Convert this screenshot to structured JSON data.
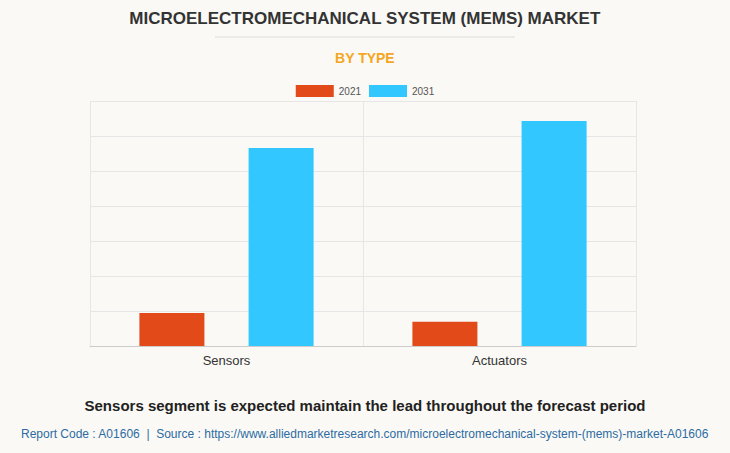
{
  "chart_data": {
    "type": "bar",
    "title": "MICROELECTROMECHANICAL SYSTEM (MEMS) MARKET",
    "subtitle": "BY TYPE",
    "annotations": [
      "Sensors segment is expected maintain the lead throughout the forecast period",
      "Report Code : A01606  |  Source : https://www.alliedmarketresearch.com/microelectromechanical-system-(mems)-market-A01606"
    ],
    "categories": [
      "Sensors",
      "Actuators"
    ],
    "series": [
      {
        "name": "2021",
        "color": "#e34a19",
        "values": [
          0.94,
          0.69
        ]
      },
      {
        "name": "2031",
        "color": "#33c7ff",
        "values": [
          5.66,
          6.43
        ]
      }
    ],
    "ylim": [
      0,
      7
    ],
    "yticks": [
      0,
      1,
      2,
      3,
      4,
      5,
      6,
      7
    ],
    "grid": true,
    "legend": "top",
    "tick_labels": "x"
  }
}
